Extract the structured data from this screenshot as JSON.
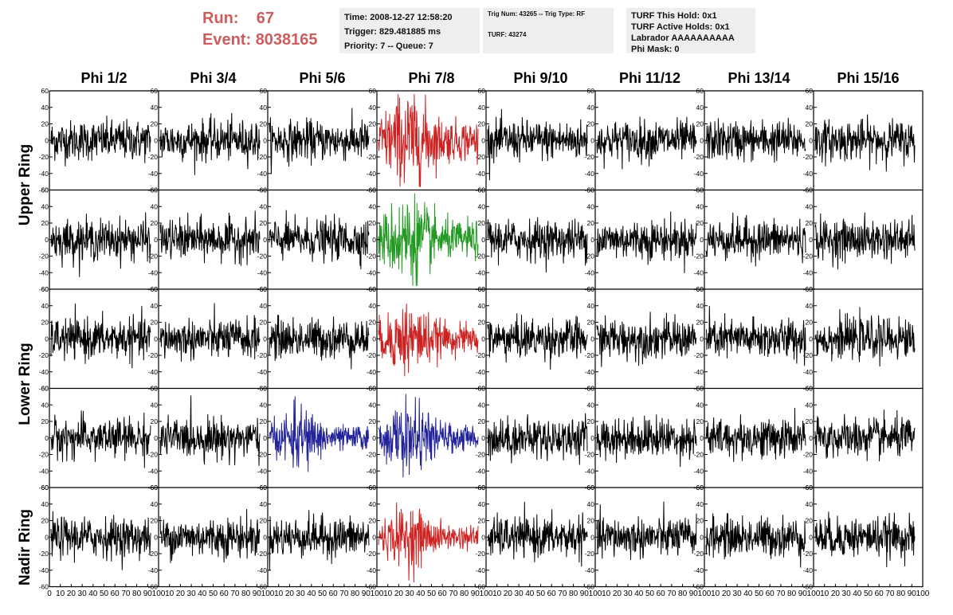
{
  "header": {
    "run_label": "Run:",
    "run_value": "67",
    "event_label": "Event:",
    "event_value": "8038165",
    "box1": {
      "time": "Time: 2008-12-27 12:58:20",
      "trigger": "Trigger: 829.481885 ms",
      "priority": "Priority: 7 -- Queue: 7"
    },
    "box2": {
      "trig": "Trig Num: 43265 -- Trig Type: RF",
      "turf": "TURF: 43274"
    },
    "box3": {
      "hold": "TURF This Hold: 0x1",
      "active": "TURF Active Holds: 0x1",
      "labrador": "Labrador AAAAAAAAAA",
      "phimask": "Phi Mask: 0"
    }
  },
  "row_labels": {
    "upper": "Upper Ring",
    "lower": "Lower Ring",
    "nadir": "Nadir Ring"
  },
  "chart_data": {
    "type": "line",
    "columns": [
      "Phi 1/2",
      "Phi 3/4",
      "Phi 5/6",
      "Phi 7/8",
      "Phi 9/10",
      "Phi 11/12",
      "Phi 13/14",
      "Phi 15/16"
    ],
    "rows": 5,
    "ylim": [
      -60,
      60
    ],
    "yticks": [
      -60,
      -40,
      -20,
      0,
      20,
      40,
      60
    ],
    "xlim": [
      0,
      100
    ],
    "xticks": [
      0,
      10,
      20,
      30,
      40,
      50,
      60,
      70,
      80,
      90,
      100
    ],
    "samples_per_trace": 260,
    "colors": {
      "default": "#000000",
      "red": "#cc2222",
      "green": "#229922",
      "blue": "#222299"
    },
    "highlighted": [
      {
        "row": 0,
        "col": 3,
        "color": "red",
        "amp": 22
      },
      {
        "row": 1,
        "col": 3,
        "color": "green",
        "amp": 20
      },
      {
        "row": 2,
        "col": 3,
        "color": "red",
        "amp": 16
      },
      {
        "row": 3,
        "col": 2,
        "color": "blue",
        "amp": 13
      },
      {
        "row": 3,
        "col": 3,
        "color": "blue",
        "amp": 15
      },
      {
        "row": 4,
        "col": 3,
        "color": "red",
        "amp": 13
      }
    ],
    "default_amp": 12
  }
}
